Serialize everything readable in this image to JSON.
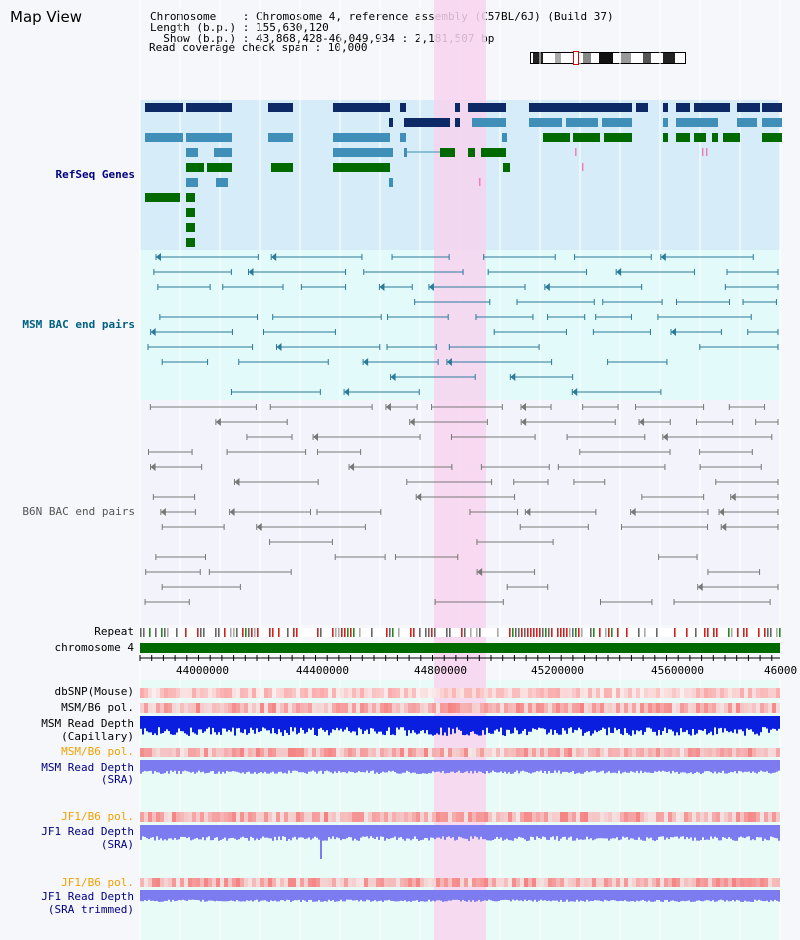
{
  "page": {
    "title": "Map View"
  },
  "info": {
    "chromosome_line": "Chromosome    : Chromosome 4, reference assembly (C57BL/6J) (Build 37)",
    "length_line": "Length (b.p.) : 155,630,120",
    "show_line": "  Show (b.p.) : 43,868,428-46,049,934 : 2,181,507 bp",
    "coverage_line": "Read coverage check span : 10,000"
  },
  "sections": {
    "refseq_label": "RefSeq Genes",
    "msm_bac_label": "MSM BAC end pairs",
    "b6n_bac_label": "B6N BAC end pairs"
  },
  "tracks": {
    "repeat": "Repeat",
    "chromosome": "chromosome 4",
    "dbsnp": "dbSNP(Mouse)",
    "msm_b6_pol": "MSM/B6 pol.",
    "msm_read_depth_cap_1": "MSM Read Depth",
    "msm_read_depth_cap_2": "(Capillary)",
    "msm_b6_pol_2": "MSM/B6 pol.",
    "msm_read_depth_sra_1": "MSM Read Depth",
    "msm_read_depth_sra_2": "(SRA)",
    "jf1_b6_pol": "JF1/B6 pol.",
    "jf1_read_depth_sra_1": "JF1 Read Depth",
    "jf1_read_depth_sra_2": "(SRA)",
    "jf1_b6_pol_2": "JF1/B6 pol.",
    "jf1_read_depth_trim_1": "JF1 Read Depth",
    "jf1_read_depth_trim_2": "(SRA trimmed)"
  },
  "axis": {
    "ticks": [
      "44000000",
      "44400000",
      "44800000",
      "45200000",
      "45600000",
      "46000"
    ]
  },
  "colors": {
    "refseq_bg": "#d6ecf8",
    "bac_bg": "#e2fafa",
    "highlight": "#f7d4ee",
    "gene_dark": "#0d2a66",
    "gene_mid": "#3f8fb8",
    "gene_green": "#006a00",
    "msm_bac": "#2a7a9a",
    "b6n_bac": "#777777",
    "chromosome": "#006a00",
    "depth_dark_blue": "#0a1ee0",
    "depth_light_blue": "#7c7cf0",
    "pol_red": "#f06060",
    "label_blue": "#000080",
    "label_orange": "#f0a000",
    "label_teal": "#006080"
  }
}
